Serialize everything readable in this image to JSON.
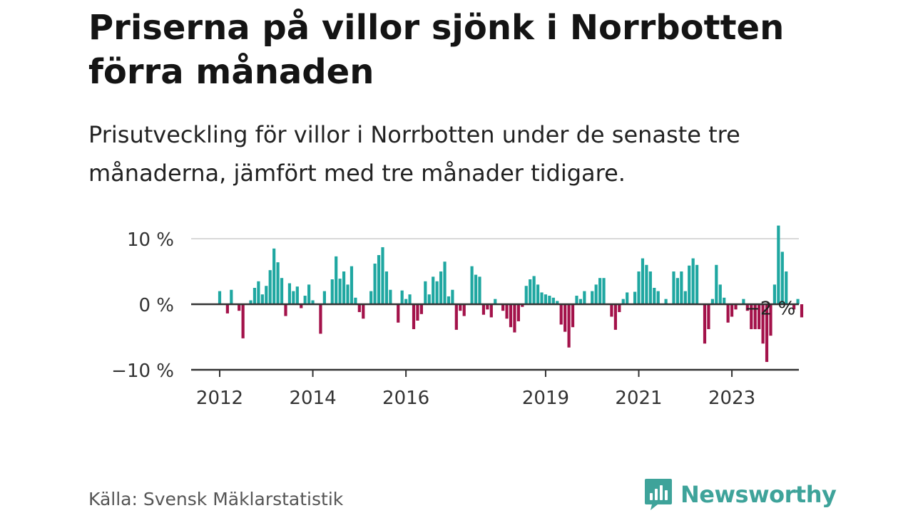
{
  "title": "Priserna på villor sjönk i Norrbotten förra månaden",
  "subtitle": "Prisutveckling för villor i Norrbotten under de senaste tre månaderna, jämfört med tre månader tidigare.",
  "source": "Källa: Svensk Mäklarstatistik",
  "brand": "Newsworthy",
  "colors": {
    "positive": "#1fa7a1",
    "negative": "#a3124a",
    "brand": "#3ea39a"
  },
  "chart_data": {
    "type": "bar",
    "y_unit": "%",
    "ylim": [
      -10,
      12
    ],
    "y_ticks": [
      {
        "value": 10,
        "label": "10 %"
      },
      {
        "value": 0,
        "label": "0 %"
      },
      {
        "value": -10,
        "label": "−10 %"
      }
    ],
    "x_ticks": [
      {
        "label": "2012",
        "index": 0
      },
      {
        "label": "2014",
        "index": 24
      },
      {
        "label": "2016",
        "index": 48
      },
      {
        "label": "2019",
        "index": 84
      },
      {
        "label": "2021",
        "index": 108
      },
      {
        "label": "2023",
        "index": 132
      }
    ],
    "annotation": {
      "text": "−2 %",
      "index": 143
    },
    "values": [
      2.0,
      0.0,
      -1.4,
      2.2,
      0.0,
      -1.0,
      -5.2,
      0.0,
      0.6,
      2.5,
      3.5,
      1.5,
      2.8,
      5.2,
      8.5,
      6.4,
      4.0,
      -1.8,
      3.2,
      2.0,
      2.7,
      -0.6,
      1.3,
      3.0,
      0.6,
      0.0,
      -4.5,
      2.0,
      0.0,
      3.8,
      7.3,
      3.9,
      5.0,
      3.0,
      5.8,
      1.0,
      -1.2,
      -2.2,
      0.0,
      2.0,
      6.2,
      7.5,
      8.7,
      5.0,
      2.2,
      0.0,
      -2.8,
      2.1,
      0.8,
      1.5,
      -3.8,
      -2.5,
      -1.5,
      3.5,
      1.5,
      4.2,
      3.5,
      5.0,
      6.5,
      1.2,
      2.2,
      -3.9,
      -1.0,
      -1.8,
      0.0,
      5.8,
      4.5,
      4.2,
      -1.6,
      -0.8,
      -2.0,
      0.8,
      0.0,
      -1.0,
      -2.2,
      -3.5,
      -4.3,
      -2.6,
      -0.4,
      2.8,
      3.8,
      4.3,
      3.0,
      1.8,
      1.5,
      1.3,
      1.0,
      0.5,
      -3.1,
      -4.2,
      -6.6,
      -3.5,
      1.3,
      0.8,
      2.0,
      0.0,
      2.0,
      3.0,
      4.0,
      4.0,
      0.0,
      -1.9,
      -3.9,
      -1.2,
      0.8,
      1.8,
      0.0,
      1.9,
      5.0,
      7.0,
      6.0,
      5.0,
      2.5,
      2.0,
      0.0,
      0.8,
      0.0,
      5.0,
      4.0,
      5.0,
      2.0,
      5.9,
      7.0,
      6.0,
      0.0,
      -6.0,
      -3.8,
      0.8,
      6.0,
      3.0,
      1.0,
      -2.8,
      -1.9,
      -0.8,
      0.0,
      0.8,
      -1.0,
      -3.8,
      -3.8,
      -3.8,
      -6.0,
      -8.8,
      -4.8,
      3.0,
      12.0,
      8.0,
      5.0,
      0.0,
      -0.8,
      0.8,
      -2.0
    ]
  }
}
